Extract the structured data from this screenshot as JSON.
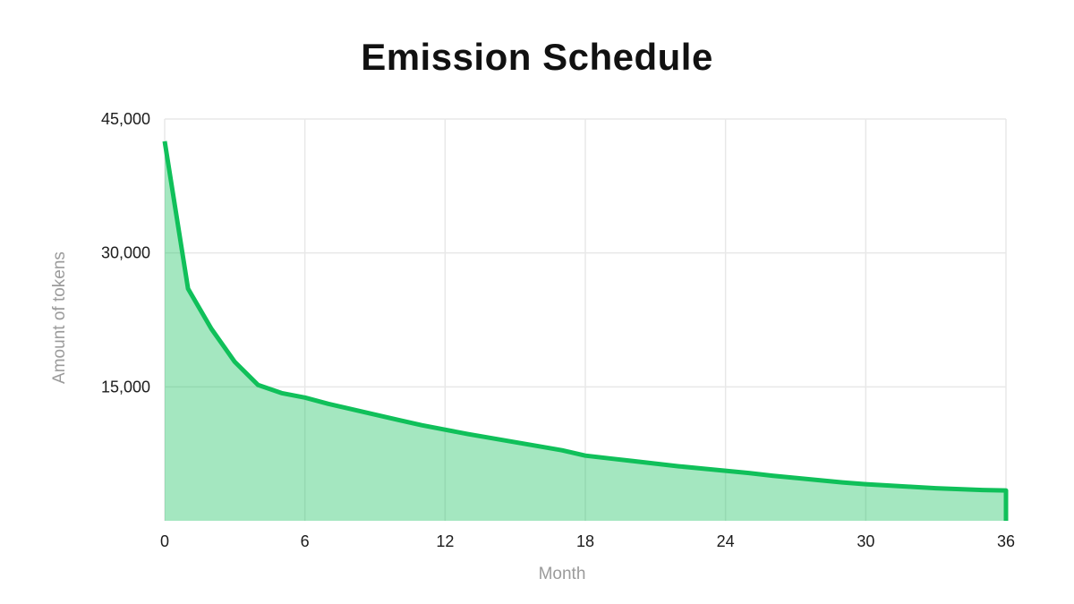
{
  "chart_data": {
    "type": "area",
    "title": "Emission Schedule",
    "xlabel": "Month",
    "ylabel": "Amount of tokens",
    "x": [
      0,
      1,
      2,
      3,
      4,
      5,
      6,
      7,
      8,
      9,
      10,
      11,
      12,
      13,
      14,
      15,
      16,
      17,
      18,
      19,
      20,
      21,
      22,
      23,
      24,
      25,
      26,
      27,
      28,
      29,
      30,
      31,
      32,
      33,
      34,
      35,
      36
    ],
    "values": [
      42500,
      26000,
      21500,
      17800,
      15200,
      14300,
      13800,
      13100,
      12500,
      11900,
      11300,
      10700,
      10200,
      9700,
      9250,
      8800,
      8350,
      7900,
      7300,
      7000,
      6700,
      6400,
      6100,
      5850,
      5600,
      5350,
      5050,
      4800,
      4550,
      4300,
      4100,
      3950,
      3800,
      3650,
      3550,
      3450,
      3400
    ],
    "xlim": [
      0,
      36
    ],
    "ylim": [
      0,
      45000
    ],
    "xticks": [
      {
        "value": 0,
        "label": "0"
      },
      {
        "value": 6,
        "label": "6"
      },
      {
        "value": 12,
        "label": "12"
      },
      {
        "value": 18,
        "label": "18"
      },
      {
        "value": 24,
        "label": "24"
      },
      {
        "value": 30,
        "label": "30"
      },
      {
        "value": 36,
        "label": "36"
      }
    ],
    "yticks": [
      {
        "value": 15000,
        "label": "15,000"
      },
      {
        "value": 30000,
        "label": "30,000"
      },
      {
        "value": 45000,
        "label": "45,000"
      }
    ],
    "grid": true,
    "legend": false,
    "colors": {
      "line": "#10c05a",
      "fill": "rgba(16,192,90,0.38)",
      "grid": "#e8e8e8",
      "tick_text": "#1c1c1c",
      "axis_title_text": "#9b9b9b",
      "title_text": "#111111",
      "background": "#ffffff"
    }
  }
}
